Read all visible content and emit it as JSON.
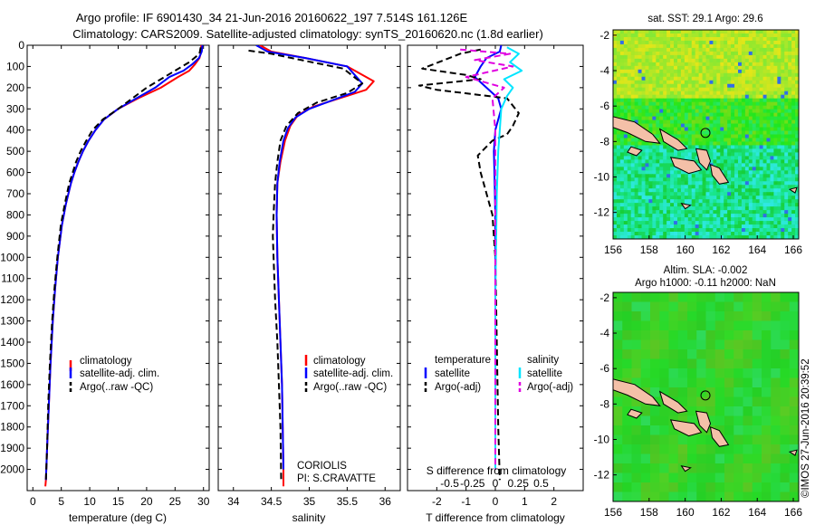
{
  "title": {
    "line1": "Argo profile: IF 6901430_34 21-Jun-2016 20160622_197 7.514S 161.126E",
    "line2": "Climatology: CARS2009. Satellite-adjusted climatology: synTS_20160620.nc (1.8d earlier)"
  },
  "colors": {
    "climatology": "#ff0000",
    "satellite": "#0000ff",
    "argo": "#000000",
    "sal_satellite": "#00e5ff",
    "sal_argo": "#e000e0"
  },
  "chart_data": [
    {
      "id": "temperature",
      "type": "line",
      "xlabel": "temperature (deg C)",
      "xlim": [
        -1,
        31
      ],
      "ylim": [
        2100,
        0
      ],
      "xticks": [
        0,
        5,
        10,
        15,
        20,
        25,
        30
      ],
      "yticks": [
        0,
        100,
        200,
        300,
        400,
        500,
        600,
        700,
        800,
        900,
        1000,
        1100,
        1200,
        1300,
        1400,
        1500,
        1600,
        1700,
        1800,
        1900,
        2000
      ],
      "legend": [
        "climatology",
        "satellite-adj. clim.",
        "Argo(..raw -QC)"
      ],
      "series": [
        {
          "name": "climatology",
          "style": "solid",
          "color": "#ff0000",
          "x": [
            29.6,
            29.6,
            29.3,
            28.5,
            27.5,
            25.5,
            22.5,
            18.5,
            15,
            12.5,
            11,
            9.8,
            8.8,
            8,
            7.3,
            6.7,
            5.8,
            5.1,
            4.4,
            3.9,
            3.5,
            3.1,
            2.8,
            2.5,
            2.3,
            2.2
          ],
          "y": [
            0,
            30,
            60,
            90,
            120,
            150,
            200,
            250,
            300,
            350,
            400,
            450,
            500,
            550,
            600,
            650,
            750,
            850,
            1000,
            1150,
            1300,
            1500,
            1700,
            1900,
            2050,
            2080
          ]
        },
        {
          "name": "satellite-adj. clim.",
          "style": "solid",
          "color": "#0000ff",
          "x": [
            29.8,
            29.7,
            29.2,
            28,
            26.5,
            24,
            21.5,
            18.2,
            15,
            12.5,
            11,
            9.8,
            8.8,
            8,
            7.3,
            6.7,
            5.8,
            5.1,
            4.4,
            3.9,
            3.5,
            3.1,
            2.8,
            2.5,
            2.3
          ],
          "y": [
            0,
            30,
            60,
            90,
            120,
            150,
            200,
            250,
            300,
            350,
            400,
            450,
            500,
            550,
            600,
            650,
            750,
            850,
            1000,
            1150,
            1300,
            1500,
            1700,
            1900,
            2050
          ]
        },
        {
          "name": "Argo(..raw -QC)",
          "style": "dashed",
          "color": "#000000",
          "x": [
            29.5,
            29.3,
            27.5,
            25,
            22.5,
            20,
            17.5,
            15,
            12.3,
            10.5,
            9.4,
            8.4,
            7.6,
            7,
            6.4,
            5.6,
            4.9,
            4.3,
            3.8,
            3.4,
            3,
            2.7,
            2.5,
            2.3
          ],
          "y": [
            10,
            40,
            80,
            120,
            160,
            200,
            250,
            300,
            350,
            400,
            450,
            500,
            550,
            600,
            650,
            750,
            850,
            1000,
            1150,
            1300,
            1500,
            1700,
            1900,
            2050
          ]
        }
      ]
    },
    {
      "id": "salinity",
      "type": "line",
      "xlabel": "salinity",
      "xlim": [
        33.8,
        36.2
      ],
      "ylim": [
        2100,
        0
      ],
      "xticks": [
        34,
        34.5,
        35,
        35.5,
        36
      ],
      "legend": [
        "climatology",
        "satellite-adj. clim.",
        "Argo(..raw -QC)"
      ],
      "annotation": [
        "CORIOLIS",
        "PI: S.CRAVATTE"
      ],
      "series": [
        {
          "name": "climatology",
          "style": "solid",
          "color": "#ff0000",
          "x": [
            34.35,
            34.5,
            34.95,
            35.5,
            35.85,
            35.75,
            35.4,
            35.05,
            34.85,
            34.75,
            34.68,
            34.62,
            34.58,
            34.57,
            34.58,
            34.6,
            34.62,
            34.64,
            34.65,
            34.66,
            34.66
          ],
          "y": [
            0,
            30,
            60,
            100,
            170,
            210,
            250,
            290,
            330,
            380,
            450,
            550,
            650,
            800,
            1000,
            1200,
            1400,
            1600,
            1800,
            2000,
            2080
          ]
        },
        {
          "name": "satellite-adj. clim.",
          "style": "solid",
          "color": "#0000ff",
          "x": [
            34.3,
            34.45,
            34.95,
            35.5,
            35.7,
            35.6,
            35.3,
            35,
            34.82,
            34.72,
            34.66,
            34.61,
            34.58,
            34.57,
            34.58,
            34.6,
            34.62,
            34.64,
            34.65,
            34.66
          ],
          "y": [
            0,
            30,
            60,
            100,
            180,
            220,
            260,
            300,
            340,
            390,
            450,
            550,
            650,
            800,
            1000,
            1200,
            1400,
            1600,
            1800,
            2000
          ]
        },
        {
          "name": "Argo(..raw -QC)",
          "style": "dashed",
          "color": "#000000",
          "x": [
            34.2,
            34.5,
            34.9,
            35.45,
            35.7,
            35.5,
            35.1,
            34.85,
            34.7,
            34.62,
            34.58,
            34.55,
            34.53,
            34.52,
            34.53,
            34.55,
            34.58,
            34.6,
            34.62,
            34.63
          ],
          "y": [
            25,
            40,
            70,
            110,
            180,
            225,
            270,
            320,
            380,
            450,
            550,
            650,
            800,
            900,
            1000,
            1200,
            1400,
            1600,
            1800,
            2050
          ]
        }
      ]
    },
    {
      "id": "differences",
      "type": "line",
      "xlabel": "T difference from climatology",
      "x2label": "S difference from climatology",
      "xlim": [
        -3,
        3
      ],
      "ylim": [
        2100,
        0
      ],
      "xticks": [
        -2,
        -1,
        0,
        1,
        2
      ],
      "x2ticks": [
        "-0.5",
        "-0.25",
        "0",
        "0.25",
        "0.5"
      ],
      "legend_temperature": [
        "temperature",
        "satellite",
        "Argo(-adj)"
      ],
      "legend_salinity": [
        "salinity",
        "satellite",
        "Argo(-adj)"
      ],
      "series": [
        {
          "name": "temperature satellite",
          "style": "solid",
          "color": "#0000ff",
          "x": [
            0.2,
            0.15,
            -0.3,
            -0.5,
            -0.7,
            -0.3,
            0.1,
            0.2,
            0.1,
            0,
            -0.05,
            -0.03,
            0,
            0,
            0,
            0
          ],
          "y": [
            0,
            30,
            60,
            100,
            150,
            200,
            250,
            300,
            350,
            400,
            500,
            600,
            800,
            1200,
            1600,
            2000
          ]
        },
        {
          "name": "temperature Argo(-adj)",
          "style": "dashed",
          "color": "#000000",
          "x": [
            -0.5,
            -1.2,
            -2.5,
            -1,
            -0.5,
            -2.6,
            -2,
            0.4,
            0.8,
            0.6,
            0.4,
            -0.1,
            -0.6,
            -0.5,
            -0.3,
            -0.1,
            0,
            0.05,
            0.1,
            0.15
          ],
          "y": [
            20,
            40,
            110,
            140,
            160,
            190,
            210,
            250,
            320,
            380,
            420,
            450,
            520,
            600,
            700,
            800,
            1000,
            1400,
            1800,
            2050
          ]
        },
        {
          "name": "salinity satellite",
          "style": "solid",
          "color": "#00e5ff",
          "x": [
            0.4,
            0.8,
            0.5,
            0.9,
            0.3,
            0.6,
            0.4,
            0.2,
            0.15,
            0.1,
            0.05,
            0,
            0
          ],
          "y": [
            10,
            40,
            80,
            120,
            160,
            200,
            240,
            300,
            400,
            500,
            700,
            1200,
            2000
          ]
        },
        {
          "name": "salinity Argo(-adj)",
          "style": "dashed",
          "color": "#e000e0",
          "x": [
            -1.2,
            0.5,
            -0.7,
            0.6,
            -1,
            0.3,
            -0.1,
            0,
            0,
            0
          ],
          "y": [
            20,
            40,
            70,
            100,
            150,
            200,
            250,
            400,
            800,
            2000
          ]
        }
      ]
    },
    {
      "id": "sst-map",
      "type": "heatmap",
      "title": "sat. SST: 29.1  Argo: 29.6",
      "xlim": [
        156,
        166.3
      ],
      "ylim": [
        -13.5,
        -1.7
      ],
      "xticks": [
        156,
        158,
        160,
        162,
        164,
        166
      ],
      "yticks": [
        -2,
        -4,
        -6,
        -8,
        -10,
        -12
      ],
      "marker": {
        "lon": 161.126,
        "lat": -7.514
      }
    },
    {
      "id": "sla-map",
      "type": "heatmap",
      "title": "Altim. SLA: -0.002",
      "subtitle": "Argo h1000: -0.11 h2000: NaN",
      "xlim": [
        156,
        166.3
      ],
      "ylim": [
        -13.5,
        -1.7
      ],
      "xticks": [
        156,
        158,
        160,
        162,
        164,
        166
      ],
      "yticks": [
        -2,
        -4,
        -6,
        -8,
        -10,
        -12
      ],
      "marker": {
        "lon": 161.126,
        "lat": -7.514
      }
    }
  ],
  "watermark": "©IMOS 27-Jun-2016 20:39:52"
}
